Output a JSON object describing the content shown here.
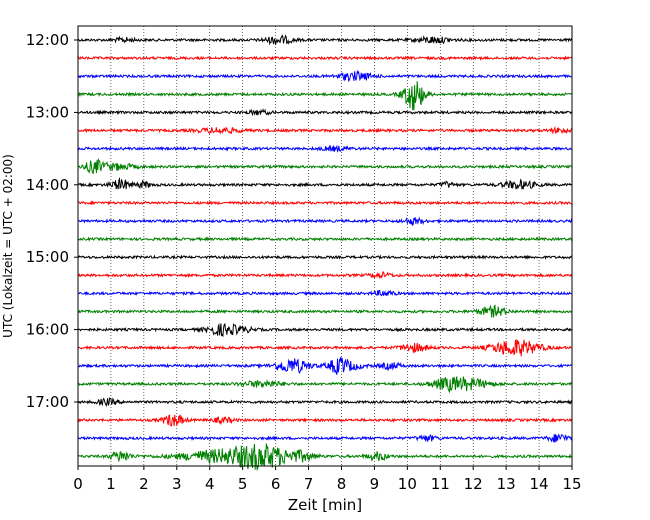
{
  "chart_data": {
    "type": "line",
    "title": "",
    "xlabel": "Zeit  [min]",
    "ylabel": "UTC (Lokalzeit = UTC + 02:00)",
    "xlim": [
      0,
      15
    ],
    "x_ticks": [
      "0",
      "1",
      "2",
      "3",
      "4",
      "5",
      "6",
      "7",
      "8",
      "9",
      "10",
      "11",
      "12",
      "13",
      "14",
      "15"
    ],
    "y_ticks": [
      "12:00",
      "13:00",
      "14:00",
      "15:00",
      "16:00",
      "17:00"
    ],
    "grid": "vertical dotted",
    "trace_minutes": [
      0,
      15,
      30,
      45,
      60,
      75,
      90,
      105,
      120,
      135,
      150,
      165,
      180,
      195,
      210,
      225,
      240,
      255,
      270,
      285,
      300,
      315,
      330,
      345
    ],
    "trace_colors": [
      "#000000",
      "#ff0000",
      "#0000ff",
      "#008000"
    ],
    "series": [
      {
        "values": []
      }
    ]
  }
}
